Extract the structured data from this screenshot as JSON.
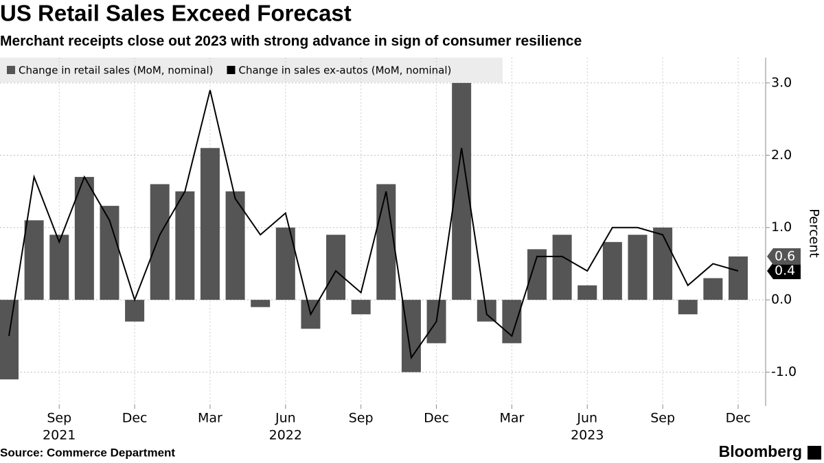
{
  "header": {
    "title": "US Retail Sales Exceed Forecast",
    "subtitle": "Merchant receipts close out 2023 with strong advance in sign of consumer resilience"
  },
  "chart_data": {
    "type": "combo",
    "categories": [
      null,
      null,
      "Sep",
      null,
      null,
      "Dec",
      null,
      null,
      "Mar",
      null,
      null,
      "Jun",
      null,
      null,
      "Sep",
      null,
      null,
      "Dec",
      null,
      null,
      "Mar",
      null,
      null,
      "Jun",
      null,
      null,
      "Sep",
      null,
      null,
      "Dec"
    ],
    "years": [
      null,
      null,
      "2021",
      null,
      null,
      null,
      null,
      null,
      null,
      null,
      null,
      "2022",
      null,
      null,
      null,
      null,
      null,
      null,
      null,
      null,
      null,
      null,
      null,
      "2023",
      null,
      null,
      null,
      null,
      null,
      null
    ],
    "series": [
      {
        "name": "Change in retail sales (MoM, nominal)",
        "kind": "bar",
        "color": "#555555",
        "values": [
          -1.1,
          1.1,
          0.9,
          1.7,
          1.3,
          -0.3,
          1.6,
          1.5,
          2.1,
          1.5,
          -0.1,
          1.0,
          -0.4,
          0.9,
          -0.2,
          1.6,
          -1.0,
          -0.6,
          3.0,
          -0.3,
          -0.6,
          0.7,
          0.9,
          0.2,
          0.8,
          0.9,
          1.0,
          -0.2,
          0.3,
          0.6
        ]
      },
      {
        "name": "Change in sales ex-autos (MoM, nominal)",
        "kind": "line",
        "color": "#000000",
        "values": [
          -0.5,
          1.7,
          0.8,
          1.7,
          1.1,
          0.0,
          0.9,
          1.5,
          2.9,
          1.4,
          0.9,
          1.2,
          -0.2,
          0.4,
          0.1,
          1.5,
          -0.8,
          -0.3,
          2.1,
          -0.2,
          -0.5,
          0.6,
          0.6,
          0.4,
          1.0,
          1.0,
          0.9,
          0.2,
          0.5,
          0.4
        ]
      }
    ],
    "y_label": "Percent",
    "ylim": [
      -1.45,
      3.35
    ],
    "yticks": [
      {
        "value": -1,
        "label": "-1.0"
      },
      {
        "value": 0,
        "label": "0.0"
      },
      {
        "value": 1,
        "label": "1.0"
      },
      {
        "value": 2,
        "label": "2.0"
      },
      {
        "value": 3,
        "label": "3.0"
      }
    ],
    "grid": true
  },
  "footer": {
    "source": "Source: Commerce Department",
    "brand": "Bloomberg"
  }
}
